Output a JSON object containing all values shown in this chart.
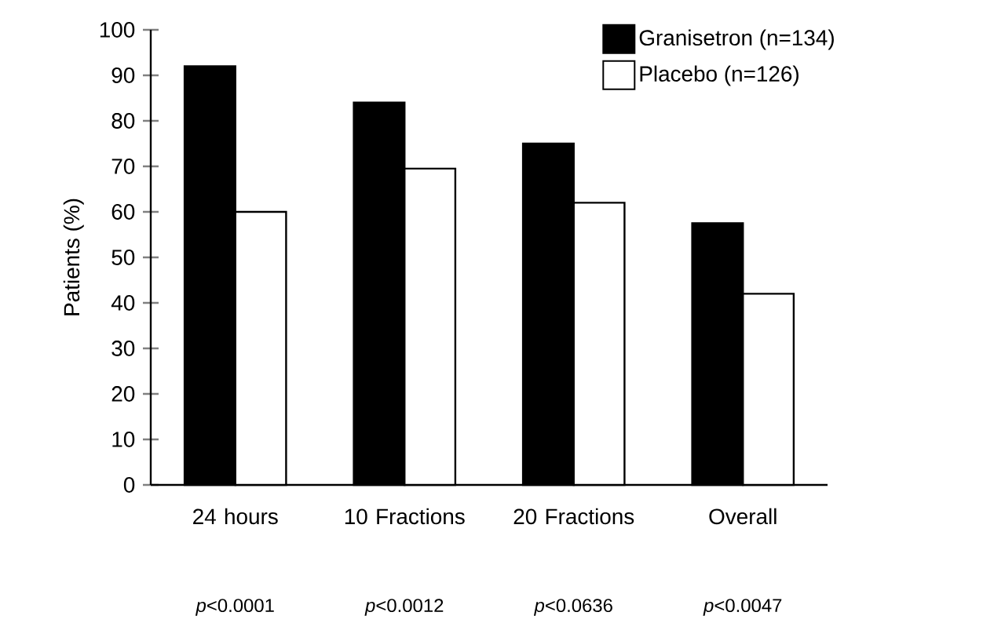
{
  "chart_data": {
    "type": "bar",
    "ylabel": "Patients (%)",
    "categories": [
      "24 hours",
      "10 Fractions",
      "20 Fractions",
      "Overall"
    ],
    "series": [
      {
        "name": "Granisetron (n=134)",
        "color": "#000000",
        "values": [
          92,
          84,
          75,
          57.5
        ]
      },
      {
        "name": "Placebo (n=126)",
        "color": "#ffffff",
        "values": [
          60,
          69.5,
          62,
          42
        ]
      }
    ],
    "ylim": [
      0,
      100
    ],
    "yticks": [
      0,
      10,
      20,
      30,
      40,
      50,
      60,
      70,
      80,
      90,
      100
    ],
    "legend": "top right",
    "annotations": [
      "*p*<0.0001",
      "*p*<0.0012",
      "*p*<0.0636",
      "*p*<0.0047"
    ]
  }
}
